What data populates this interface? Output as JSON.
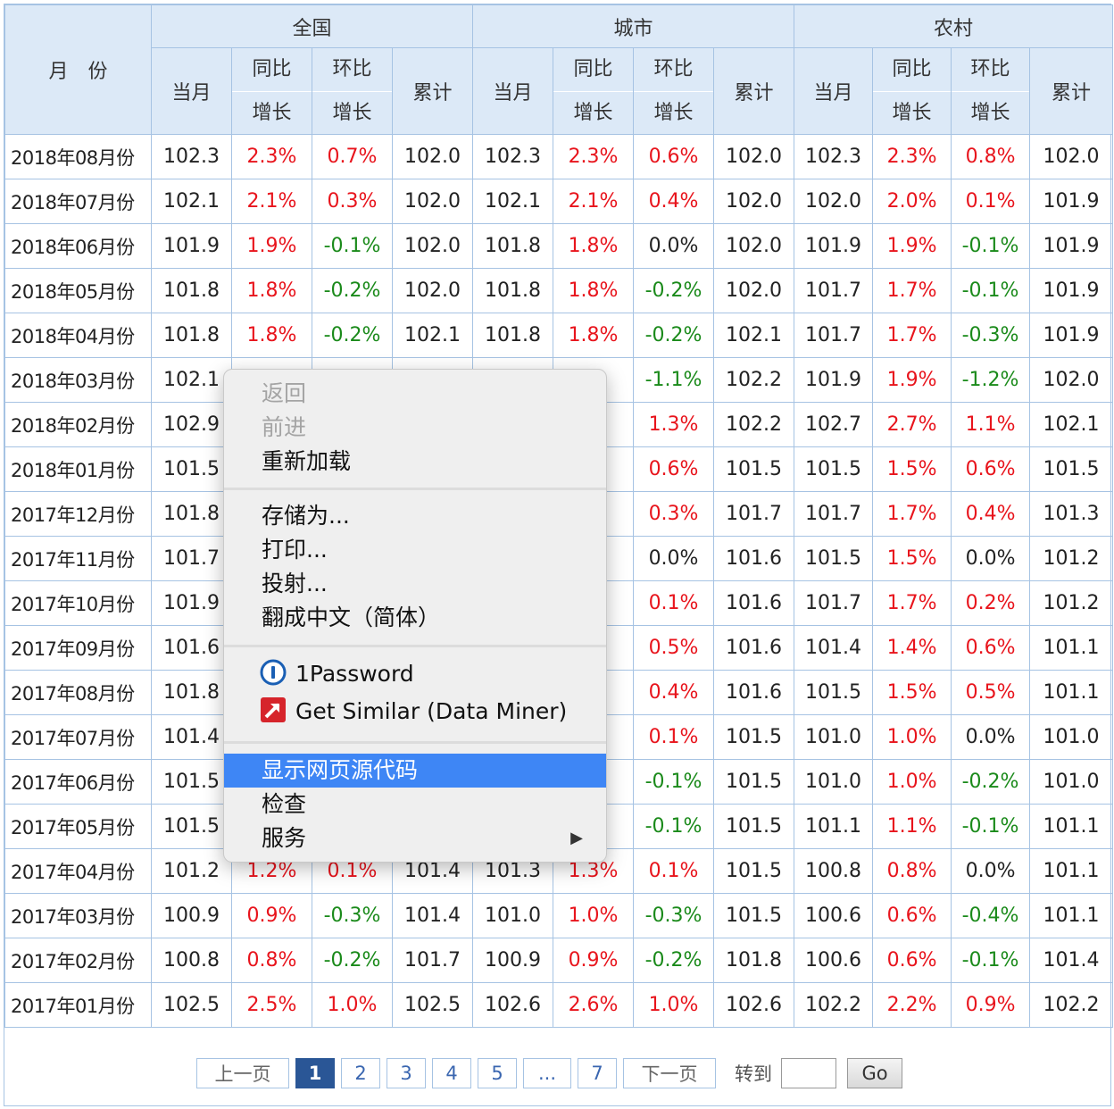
{
  "header": {
    "month_label": "月　份",
    "groups": [
      "全国",
      "城市",
      "农村"
    ],
    "sub": {
      "current": "当月",
      "yoy_1": "同比",
      "yoy_2": "增长",
      "mom_1": "环比",
      "mom_2": "增长",
      "cum": "累计"
    }
  },
  "rows": [
    {
      "month": "2018年08月份",
      "v": [
        [
          "102.3",
          ""
        ],
        [
          "2.3%",
          "up"
        ],
        [
          "0.7%",
          "up"
        ],
        [
          "102.0",
          ""
        ],
        [
          "102.3",
          ""
        ],
        [
          "2.3%",
          "up"
        ],
        [
          "0.6%",
          "up"
        ],
        [
          "102.0",
          ""
        ],
        [
          "102.3",
          ""
        ],
        [
          "2.3%",
          "up"
        ],
        [
          "0.8%",
          "up"
        ],
        [
          "102.0",
          ""
        ]
      ]
    },
    {
      "month": "2018年07月份",
      "v": [
        [
          "102.1",
          ""
        ],
        [
          "2.1%",
          "up"
        ],
        [
          "0.3%",
          "up"
        ],
        [
          "102.0",
          ""
        ],
        [
          "102.1",
          ""
        ],
        [
          "2.1%",
          "up"
        ],
        [
          "0.4%",
          "up"
        ],
        [
          "102.0",
          ""
        ],
        [
          "102.0",
          ""
        ],
        [
          "2.0%",
          "up"
        ],
        [
          "0.1%",
          "up"
        ],
        [
          "101.9",
          ""
        ]
      ]
    },
    {
      "month": "2018年06月份",
      "v": [
        [
          "101.9",
          ""
        ],
        [
          "1.9%",
          "up"
        ],
        [
          "-0.1%",
          "down"
        ],
        [
          "102.0",
          ""
        ],
        [
          "101.8",
          ""
        ],
        [
          "1.8%",
          "up"
        ],
        [
          "0.0%",
          "flat"
        ],
        [
          "102.0",
          ""
        ],
        [
          "101.9",
          ""
        ],
        [
          "1.9%",
          "up"
        ],
        [
          "-0.1%",
          "down"
        ],
        [
          "101.9",
          ""
        ]
      ]
    },
    {
      "month": "2018年05月份",
      "v": [
        [
          "101.8",
          ""
        ],
        [
          "1.8%",
          "up"
        ],
        [
          "-0.2%",
          "down"
        ],
        [
          "102.0",
          ""
        ],
        [
          "101.8",
          ""
        ],
        [
          "1.8%",
          "up"
        ],
        [
          "-0.2%",
          "down"
        ],
        [
          "102.0",
          ""
        ],
        [
          "101.7",
          ""
        ],
        [
          "1.7%",
          "up"
        ],
        [
          "-0.1%",
          "down"
        ],
        [
          "101.9",
          ""
        ]
      ]
    },
    {
      "month": "2018年04月份",
      "v": [
        [
          "101.8",
          ""
        ],
        [
          "1.8%",
          "up"
        ],
        [
          "-0.2%",
          "down"
        ],
        [
          "102.1",
          ""
        ],
        [
          "101.8",
          ""
        ],
        [
          "1.8%",
          "up"
        ],
        [
          "-0.2%",
          "down"
        ],
        [
          "102.1",
          ""
        ],
        [
          "101.7",
          ""
        ],
        [
          "1.7%",
          "up"
        ],
        [
          "-0.3%",
          "down"
        ],
        [
          "101.9",
          ""
        ]
      ]
    },
    {
      "month": "2018年03月份",
      "v": [
        [
          "102.1",
          ""
        ],
        [
          "",
          ""
        ],
        [
          "",
          ""
        ],
        [
          "",
          ""
        ],
        [
          "",
          ""
        ],
        [
          "%",
          "up"
        ],
        [
          "-1.1%",
          "down"
        ],
        [
          "102.2",
          ""
        ],
        [
          "101.9",
          ""
        ],
        [
          "1.9%",
          "up"
        ],
        [
          "-1.2%",
          "down"
        ],
        [
          "102.0",
          ""
        ]
      ]
    },
    {
      "month": "2018年02月份",
      "v": [
        [
          "102.9",
          ""
        ],
        [
          "",
          ""
        ],
        [
          "",
          ""
        ],
        [
          "",
          ""
        ],
        [
          "",
          ""
        ],
        [
          "%",
          "up"
        ],
        [
          "1.3%",
          "up"
        ],
        [
          "102.2",
          ""
        ],
        [
          "102.7",
          ""
        ],
        [
          "2.7%",
          "up"
        ],
        [
          "1.1%",
          "up"
        ],
        [
          "102.1",
          ""
        ]
      ]
    },
    {
      "month": "2018年01月份",
      "v": [
        [
          "101.5",
          ""
        ],
        [
          "",
          ""
        ],
        [
          "",
          ""
        ],
        [
          "",
          ""
        ],
        [
          "",
          ""
        ],
        [
          "%",
          "up"
        ],
        [
          "0.6%",
          "up"
        ],
        [
          "101.5",
          ""
        ],
        [
          "101.5",
          ""
        ],
        [
          "1.5%",
          "up"
        ],
        [
          "0.6%",
          "up"
        ],
        [
          "101.5",
          ""
        ]
      ]
    },
    {
      "month": "2017年12月份",
      "v": [
        [
          "101.8",
          ""
        ],
        [
          "",
          ""
        ],
        [
          "",
          ""
        ],
        [
          "",
          ""
        ],
        [
          "",
          ""
        ],
        [
          "%",
          "up"
        ],
        [
          "0.3%",
          "up"
        ],
        [
          "101.7",
          ""
        ],
        [
          "101.7",
          ""
        ],
        [
          "1.7%",
          "up"
        ],
        [
          "0.4%",
          "up"
        ],
        [
          "101.3",
          ""
        ]
      ]
    },
    {
      "month": "2017年11月份",
      "v": [
        [
          "101.7",
          ""
        ],
        [
          "",
          ""
        ],
        [
          "",
          ""
        ],
        [
          "",
          ""
        ],
        [
          "",
          ""
        ],
        [
          "%",
          "up"
        ],
        [
          "0.0%",
          "flat"
        ],
        [
          "101.6",
          ""
        ],
        [
          "101.5",
          ""
        ],
        [
          "1.5%",
          "up"
        ],
        [
          "0.0%",
          "flat"
        ],
        [
          "101.2",
          ""
        ]
      ]
    },
    {
      "month": "2017年10月份",
      "v": [
        [
          "101.9",
          ""
        ],
        [
          "",
          ""
        ],
        [
          "",
          ""
        ],
        [
          "",
          ""
        ],
        [
          "",
          ""
        ],
        [
          "%",
          "up"
        ],
        [
          "0.1%",
          "up"
        ],
        [
          "101.6",
          ""
        ],
        [
          "101.7",
          ""
        ],
        [
          "1.7%",
          "up"
        ],
        [
          "0.2%",
          "up"
        ],
        [
          "101.2",
          ""
        ]
      ]
    },
    {
      "month": "2017年09月份",
      "v": [
        [
          "101.6",
          ""
        ],
        [
          "",
          ""
        ],
        [
          "",
          ""
        ],
        [
          "",
          ""
        ],
        [
          "",
          ""
        ],
        [
          "%",
          "up"
        ],
        [
          "0.5%",
          "up"
        ],
        [
          "101.6",
          ""
        ],
        [
          "101.4",
          ""
        ],
        [
          "1.4%",
          "up"
        ],
        [
          "0.6%",
          "up"
        ],
        [
          "101.1",
          ""
        ]
      ]
    },
    {
      "month": "2017年08月份",
      "v": [
        [
          "101.8",
          ""
        ],
        [
          "",
          ""
        ],
        [
          "",
          ""
        ],
        [
          "",
          ""
        ],
        [
          "",
          ""
        ],
        [
          "%",
          "up"
        ],
        [
          "0.4%",
          "up"
        ],
        [
          "101.6",
          ""
        ],
        [
          "101.5",
          ""
        ],
        [
          "1.5%",
          "up"
        ],
        [
          "0.5%",
          "up"
        ],
        [
          "101.1",
          ""
        ]
      ]
    },
    {
      "month": "2017年07月份",
      "v": [
        [
          "101.4",
          ""
        ],
        [
          "",
          ""
        ],
        [
          "",
          ""
        ],
        [
          "",
          ""
        ],
        [
          "",
          ""
        ],
        [
          "%",
          "up"
        ],
        [
          "0.1%",
          "up"
        ],
        [
          "101.5",
          ""
        ],
        [
          "101.0",
          ""
        ],
        [
          "1.0%",
          "up"
        ],
        [
          "0.0%",
          "flat"
        ],
        [
          "101.0",
          ""
        ]
      ]
    },
    {
      "month": "2017年06月份",
      "v": [
        [
          "101.5",
          ""
        ],
        [
          "",
          ""
        ],
        [
          "",
          ""
        ],
        [
          "",
          ""
        ],
        [
          "",
          ""
        ],
        [
          "%",
          "up"
        ],
        [
          "-0.1%",
          "down"
        ],
        [
          "101.5",
          ""
        ],
        [
          "101.0",
          ""
        ],
        [
          "1.0%",
          "up"
        ],
        [
          "-0.2%",
          "down"
        ],
        [
          "101.0",
          ""
        ]
      ]
    },
    {
      "month": "2017年05月份",
      "v": [
        [
          "101.5",
          ""
        ],
        [
          "",
          ""
        ],
        [
          "",
          ""
        ],
        [
          "",
          ""
        ],
        [
          "",
          ""
        ],
        [
          "%",
          "up"
        ],
        [
          "-0.1%",
          "down"
        ],
        [
          "101.5",
          ""
        ],
        [
          "101.1",
          ""
        ],
        [
          "1.1%",
          "up"
        ],
        [
          "-0.1%",
          "down"
        ],
        [
          "101.1",
          ""
        ]
      ]
    },
    {
      "month": "2017年04月份",
      "v": [
        [
          "101.2",
          ""
        ],
        [
          "1.2%",
          "up"
        ],
        [
          "0.1%",
          "up"
        ],
        [
          "101.4",
          ""
        ],
        [
          "101.3",
          ""
        ],
        [
          "1.3%",
          "up"
        ],
        [
          "0.1%",
          "up"
        ],
        [
          "101.5",
          ""
        ],
        [
          "100.8",
          ""
        ],
        [
          "0.8%",
          "up"
        ],
        [
          "0.0%",
          "flat"
        ],
        [
          "101.1",
          ""
        ]
      ]
    },
    {
      "month": "2017年03月份",
      "v": [
        [
          "100.9",
          ""
        ],
        [
          "0.9%",
          "up"
        ],
        [
          "-0.3%",
          "down"
        ],
        [
          "101.4",
          ""
        ],
        [
          "101.0",
          ""
        ],
        [
          "1.0%",
          "up"
        ],
        [
          "-0.3%",
          "down"
        ],
        [
          "101.5",
          ""
        ],
        [
          "100.6",
          ""
        ],
        [
          "0.6%",
          "up"
        ],
        [
          "-0.4%",
          "down"
        ],
        [
          "101.1",
          ""
        ]
      ]
    },
    {
      "month": "2017年02月份",
      "v": [
        [
          "100.8",
          ""
        ],
        [
          "0.8%",
          "up"
        ],
        [
          "-0.2%",
          "down"
        ],
        [
          "101.7",
          ""
        ],
        [
          "100.9",
          ""
        ],
        [
          "0.9%",
          "up"
        ],
        [
          "-0.2%",
          "down"
        ],
        [
          "101.8",
          ""
        ],
        [
          "100.6",
          ""
        ],
        [
          "0.6%",
          "up"
        ],
        [
          "-0.1%",
          "down"
        ],
        [
          "101.4",
          ""
        ]
      ]
    },
    {
      "month": "2017年01月份",
      "v": [
        [
          "102.5",
          ""
        ],
        [
          "2.5%",
          "up"
        ],
        [
          "1.0%",
          "up"
        ],
        [
          "102.5",
          ""
        ],
        [
          "102.6",
          ""
        ],
        [
          "2.6%",
          "up"
        ],
        [
          "1.0%",
          "up"
        ],
        [
          "102.6",
          ""
        ],
        [
          "102.2",
          ""
        ],
        [
          "2.2%",
          "up"
        ],
        [
          "0.9%",
          "up"
        ],
        [
          "102.2",
          ""
        ]
      ]
    }
  ],
  "colors": {
    "up": "#e8141c",
    "down": "#1a8a1a",
    "header_bg": "#dce9f7",
    "border": "#a6c3e3",
    "menu_highlight": "#3e86f5"
  },
  "pager": {
    "prev": "上一页",
    "pages": [
      {
        "label": "1",
        "current": true
      },
      {
        "label": "2",
        "current": false
      },
      {
        "label": "3",
        "current": false
      },
      {
        "label": "4",
        "current": false
      },
      {
        "label": "5",
        "current": false
      },
      {
        "label": "...",
        "current": false
      },
      {
        "label": "7",
        "current": false
      }
    ],
    "next": "下一页",
    "goto_label": "转到",
    "goto_value": "",
    "go_button": "Go"
  },
  "context_menu": {
    "back": "返回",
    "forward": "前进",
    "reload": "重新加载",
    "save_as": "存储为...",
    "print": "打印...",
    "cast": "投射...",
    "translate": "翻成中文（简体）",
    "password": "1Password",
    "data_miner": "Get Similar (Data Miner)",
    "view_source": "显示网页源代码",
    "inspect": "检查",
    "services": "服务",
    "services_arrow": "▶"
  }
}
